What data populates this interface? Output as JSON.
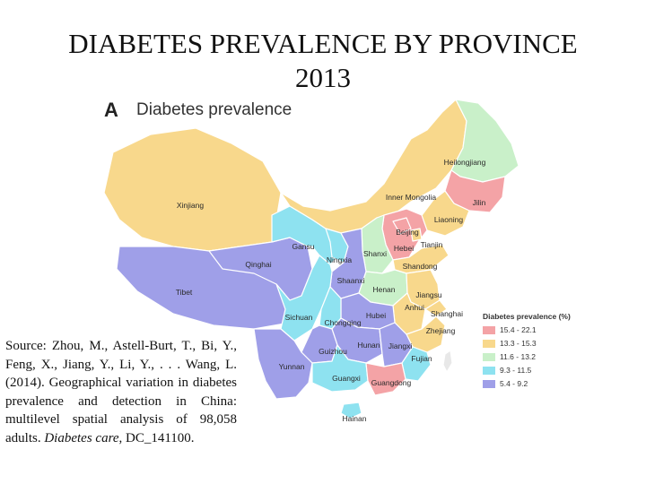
{
  "slide": {
    "title_line1": "DIABETES PREVALENCE BY PROVINCE",
    "title_line2": "2013"
  },
  "map": {
    "panel_letter": "A",
    "panel_title": "Diabetes prevalence",
    "colors": {
      "r1": "#f4a3a6",
      "r2": "#f8d88c",
      "r3": "#c9f0c9",
      "r4": "#8ee2f0",
      "r5": "#9f9fe8",
      "border": "#ffffff",
      "neighbor": "#e8e8e8"
    },
    "provinces": [
      {
        "name": "Xinjiang",
        "cls": "r2"
      },
      {
        "name": "Tibet",
        "cls": "r5"
      },
      {
        "name": "Qinghai",
        "cls": "r5"
      },
      {
        "name": "Gansu",
        "cls": "r4"
      },
      {
        "name": "Inner Mongolia",
        "cls": "r2"
      },
      {
        "name": "Heilongjiang",
        "cls": "r3"
      },
      {
        "name": "Jilin",
        "cls": "r1"
      },
      {
        "name": "Liaoning",
        "cls": "r2"
      },
      {
        "name": "Beijing",
        "cls": "r1"
      },
      {
        "name": "Tianjin",
        "cls": "r2"
      },
      {
        "name": "Hebei",
        "cls": "r1"
      },
      {
        "name": "Shanxi",
        "cls": "r3"
      },
      {
        "name": "Shandong",
        "cls": "r2"
      },
      {
        "name": "Ningxia",
        "cls": "r4"
      },
      {
        "name": "Shaanxi",
        "cls": "r5"
      },
      {
        "name": "Henan",
        "cls": "r3"
      },
      {
        "name": "Jiangsu",
        "cls": "r2"
      },
      {
        "name": "Anhui",
        "cls": "r2"
      },
      {
        "name": "Shanghai",
        "cls": "r2"
      },
      {
        "name": "Hubei",
        "cls": "r5"
      },
      {
        "name": "Sichuan",
        "cls": "r4"
      },
      {
        "name": "Chongqing",
        "cls": "r4"
      },
      {
        "name": "Zhejiang",
        "cls": "r2"
      },
      {
        "name": "Hunan",
        "cls": "r5"
      },
      {
        "name": "Jiangxi",
        "cls": "r5"
      },
      {
        "name": "Guizhou",
        "cls": "r5"
      },
      {
        "name": "Fujian",
        "cls": "r4"
      },
      {
        "name": "Yunnan",
        "cls": "r5"
      },
      {
        "name": "Guangxi",
        "cls": "r4"
      },
      {
        "name": "Guangdong",
        "cls": "r1"
      },
      {
        "name": "Hainan",
        "cls": "r4"
      }
    ]
  },
  "legend": {
    "title": "Diabetes prevalence (%)",
    "items": [
      {
        "label": "15.4 - 22.1",
        "cls": "r1"
      },
      {
        "label": "13.3 - 15.3",
        "cls": "r2"
      },
      {
        "label": "11.6 - 13.2",
        "cls": "r3"
      },
      {
        "label": "9.3 - 11.5",
        "cls": "r4"
      },
      {
        "label": "5.4 - 9.2",
        "cls": "r5"
      }
    ]
  },
  "source": {
    "text": "Source: Zhou, M., Astell-Burt, T., Bi, Y., Feng, X., Jiang, Y., Li, Y., . . . Wang, L. (2014). Geographical variation in diabetes prevalence and detection in China: multilevel spatial analysis of 98,058 adults. ",
    "journal": "Diabetes care",
    "suffix": ", DC_141100."
  }
}
